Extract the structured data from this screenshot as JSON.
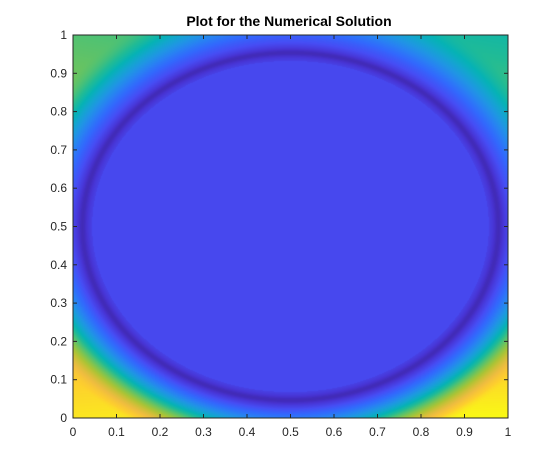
{
  "chart_data": {
    "type": "heatmap",
    "title": "Plot for the Numerical Solution",
    "xlabel": "",
    "ylabel": "",
    "xlim": [
      0,
      1
    ],
    "ylim": [
      0,
      1
    ],
    "x_ticks": [
      0,
      0.1,
      0.2,
      0.3,
      0.4,
      0.5,
      0.6,
      0.7,
      0.8,
      0.9,
      1
    ],
    "y_ticks": [
      0,
      0.1,
      0.2,
      0.3,
      0.4,
      0.5,
      0.6,
      0.7,
      0.8,
      0.9,
      1
    ],
    "x_tick_labels": [
      "0",
      "0.1",
      "0.2",
      "0.3",
      "0.4",
      "0.5",
      "0.6",
      "0.7",
      "0.8",
      "0.9",
      "1"
    ],
    "y_tick_labels": [
      "0",
      "0.1",
      "0.2",
      "0.3",
      "0.4",
      "0.5",
      "0.6",
      "0.7",
      "0.8",
      "0.9",
      "1"
    ],
    "colormap": "parula",
    "colorbar": false,
    "grid": false,
    "box": true,
    "colors": {
      "background": "#ffffff",
      "axes": "#262626",
      "interior": "#1560dc",
      "front_ring": "#2a38b8",
      "corner_high": "#f9fb0e"
    },
    "field": {
      "description_of_values": "solution value u(x,y), parula colormap normalized 0 (dark blue) to 1 (yellow)",
      "interior_value": 0.12,
      "front_ring_value": 0.02,
      "front_center": [
        0.5,
        0.5
      ],
      "front_radius_x": 0.485,
      "front_radius_y": 0.46,
      "corner_values": {
        "bottom_left": 0.97,
        "bottom_right": 1.0,
        "top_left": 0.6,
        "top_right": 0.5
      }
    }
  }
}
